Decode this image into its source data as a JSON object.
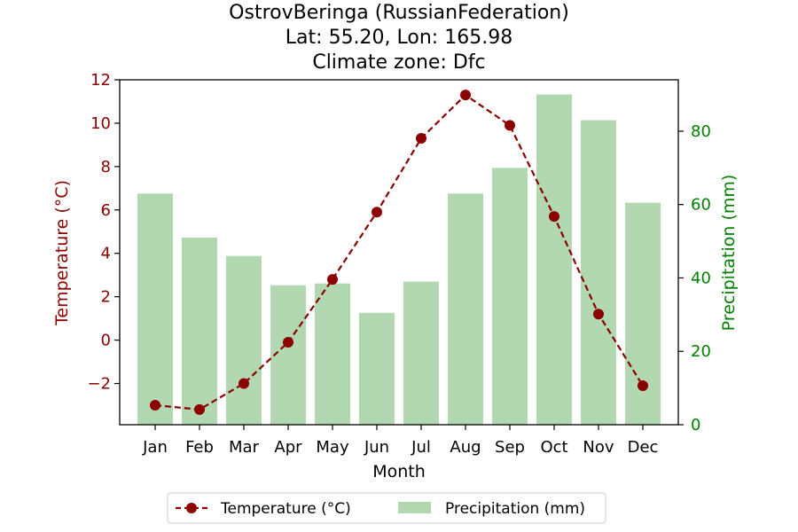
{
  "chart_data": {
    "type": "bar+line",
    "title_lines": [
      "OstrovBeringa (RussianFederation)",
      "Lat: 55.20, Lon: 165.98",
      "Climate zone: Dfc"
    ],
    "xlabel": "Month",
    "ylabel_left": "Temperature (°C)",
    "ylabel_right": "Precipitation (mm)",
    "categories": [
      "Jan",
      "Feb",
      "Mar",
      "Apr",
      "May",
      "Jun",
      "Jul",
      "Aug",
      "Sep",
      "Oct",
      "Nov",
      "Dec"
    ],
    "y_left_lim": [
      -3.9,
      12.0
    ],
    "y_left_ticks": [
      -2,
      0,
      2,
      4,
      6,
      8,
      10,
      12
    ],
    "y_right_lim": [
      0,
      94
    ],
    "y_right_ticks": [
      0,
      20,
      40,
      60,
      80
    ],
    "series": [
      {
        "name": "Temperature (°C)",
        "kind": "line",
        "axis": "left",
        "color": "#8b0000",
        "values": [
          -3.0,
          -3.2,
          -2.0,
          -0.1,
          2.8,
          5.9,
          9.3,
          11.3,
          9.9,
          5.7,
          1.2,
          -2.1
        ]
      },
      {
        "name": "Precipitation (mm)",
        "kind": "bar",
        "axis": "right",
        "color": "#b2d8b2",
        "values": [
          63,
          51,
          46,
          38,
          38.5,
          30.5,
          39,
          63,
          70,
          90,
          83,
          60.5
        ]
      }
    ],
    "left_axis_color": "#8b0000",
    "right_axis_color": "#008000",
    "legend_position": "bottom-center"
  }
}
